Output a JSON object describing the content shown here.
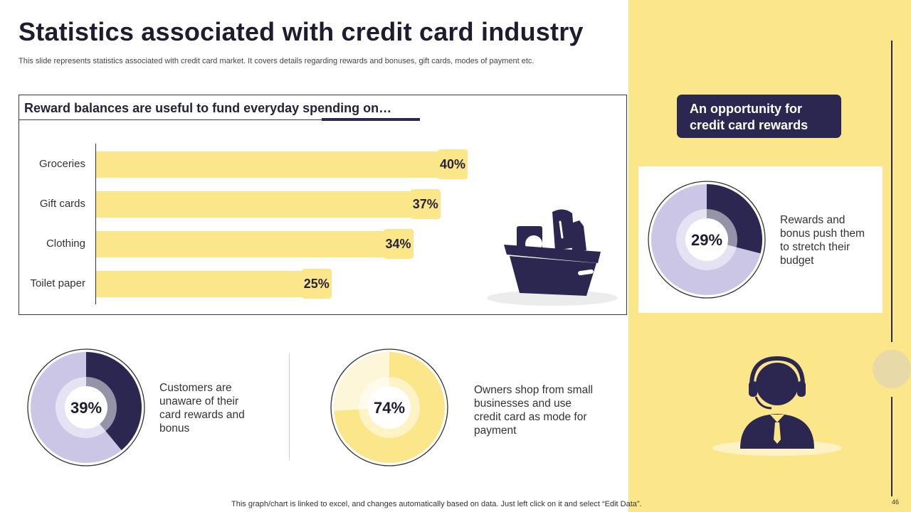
{
  "title": "Statistics associated with credit card industry",
  "subtitle": "This slide represents statistics associated with credit card market. It covers details regarding rewards and bonuses, gift cards, modes of payment etc.",
  "bar_heading": "Reward balances are useful to fund everyday spending on…",
  "chart_data": [
    {
      "type": "bar",
      "orientation": "horizontal",
      "title": "Reward balances are useful to fund everyday spending on…",
      "categories": [
        "Groceries",
        "Gift cards",
        "Clothing",
        "Toilet paper"
      ],
      "values": [
        40,
        37,
        34,
        25
      ],
      "value_labels": [
        "40%",
        "37%",
        "34%",
        "25%"
      ],
      "unit": "%",
      "bar_color": "#FBE68A"
    },
    {
      "type": "pie",
      "variant": "donut",
      "value": 29,
      "label": "29%",
      "description": "Rewards and bonus push them to stretch their budget",
      "colors": {
        "value": "#2b2750",
        "rest": "#CBC6E6"
      }
    },
    {
      "type": "pie",
      "variant": "donut",
      "value": 39,
      "label": "39%",
      "description": "Customers are unaware of their card rewards and bonus",
      "colors": {
        "value": "#2b2750",
        "rest": "#CBC6E6"
      }
    },
    {
      "type": "pie",
      "variant": "donut",
      "value": 74,
      "label": "74%",
      "description": "Owners shop from small businesses and use credit card as mode for payment",
      "colors": {
        "value": "#FBE68A",
        "rest": "#FDF6D8"
      }
    }
  ],
  "opportunity_box": "An opportunity for credit card rewards",
  "footer": "This graph/chart is linked to excel,  and changes automatically based on data. Just left click on it and select “Edit Data”.",
  "page_number": "46",
  "icons": [
    "shopping-basket-icon",
    "support-agent-icon"
  ],
  "colors": {
    "accent_yellow": "#FBE68A",
    "navy": "#2b2750",
    "lavender": "#CBC6E6"
  }
}
